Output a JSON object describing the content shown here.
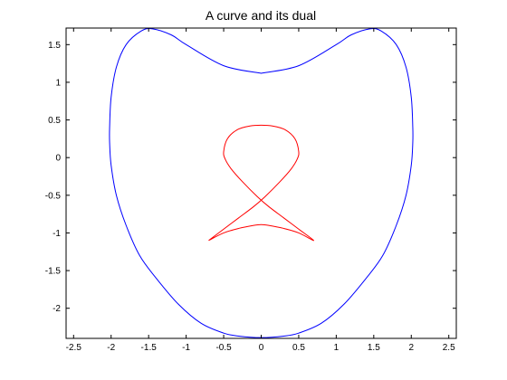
{
  "chart_data": {
    "type": "line",
    "title": "A curve and its dual",
    "xlabel": "",
    "ylabel": "",
    "xlim": [
      -2.6,
      2.6
    ],
    "ylim": [
      -2.4,
      1.72
    ],
    "grid": false,
    "xticks": [
      -2.5,
      -2,
      -1.5,
      -1,
      -0.5,
      0,
      0.5,
      1,
      1.5,
      2,
      2.5
    ],
    "xtick_labels": [
      "-2.5",
      "-2",
      "-1.5",
      "-1",
      "-0.5",
      "0",
      "0.5",
      "1",
      "1.5",
      "2",
      "2.5"
    ],
    "yticks": [
      -2,
      -1.5,
      -1,
      -0.5,
      0,
      0.5,
      1,
      1.5
    ],
    "ytick_labels": [
      "-2",
      "-1.5",
      "-1",
      "-0.5",
      "0",
      "0.5",
      "1",
      "1.5"
    ],
    "series": [
      {
        "color": "#0000ff",
        "closed": true,
        "x": [
          0,
          0.5,
          1.0,
          1.2,
          1.45,
          1.6,
          1.8,
          1.93,
          2.0,
          2.02,
          2.02,
          2.0,
          1.93,
          1.8,
          1.62,
          1.4,
          1.1,
          0.8,
          0.5,
          0.3,
          0,
          -0.3,
          -0.5,
          -0.8,
          -1.1,
          -1.4,
          -1.62,
          -1.8,
          -1.93,
          -2.0,
          -2.02,
          -2.02,
          -2.0,
          -1.93,
          -1.8,
          -1.6,
          -1.45,
          -1.2,
          -1.0,
          -0.5,
          0
        ],
        "y": [
          1.12,
          1.22,
          1.5,
          1.63,
          1.71,
          1.68,
          1.5,
          1.2,
          0.8,
          0.4,
          0.2,
          -0.1,
          -0.5,
          -0.9,
          -1.3,
          -1.6,
          -1.95,
          -2.2,
          -2.33,
          -2.37,
          -2.39,
          -2.37,
          -2.33,
          -2.2,
          -1.95,
          -1.6,
          -1.3,
          -0.9,
          -0.5,
          -0.1,
          0.2,
          0.4,
          0.8,
          1.2,
          1.5,
          1.68,
          1.71,
          1.63,
          1.5,
          1.22,
          1.12
        ]
      },
      {
        "color": "#ff0000",
        "closed": false,
        "x": [
          -0.7,
          -0.5,
          -0.3,
          -0.1,
          0.05,
          0.25,
          0.4,
          0.48,
          0.5,
          0.45,
          0.32,
          0.15,
          0,
          -0.15,
          -0.32,
          -0.45,
          -0.5,
          -0.48,
          -0.4,
          -0.25,
          -0.05,
          0.1,
          0.3,
          0.5,
          0.7,
          0.5,
          0.3,
          0.1,
          0,
          -0.1,
          -0.3,
          -0.5,
          -0.7
        ],
        "y": [
          -1.1,
          -0.95,
          -0.8,
          -0.65,
          -0.52,
          -0.32,
          -0.15,
          -0.02,
          0.08,
          0.25,
          0.37,
          0.42,
          0.43,
          0.42,
          0.37,
          0.25,
          0.08,
          -0.02,
          -0.15,
          -0.32,
          -0.52,
          -0.65,
          -0.8,
          -0.95,
          -1.1,
          -1.0,
          -0.94,
          -0.9,
          -0.89,
          -0.9,
          -0.94,
          -1.0,
          -1.1
        ]
      }
    ]
  }
}
